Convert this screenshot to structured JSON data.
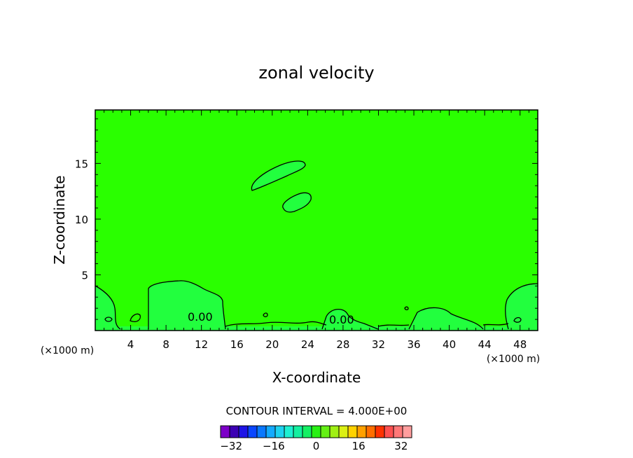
{
  "chart_data": {
    "type": "contour",
    "title": "zonal velocity",
    "xlabel": "X-coordinate",
    "ylabel": "Z-coordinate",
    "x_unit": "(×1000 m)",
    "y_unit": "(×1000 m)",
    "xlim": [
      0,
      50
    ],
    "ylim": [
      0,
      19.8
    ],
    "x_ticks": [
      4,
      8,
      12,
      16,
      20,
      24,
      28,
      32,
      36,
      40,
      44,
      48
    ],
    "y_ticks": [
      5,
      10,
      15
    ],
    "contour_labels": [
      "0.00",
      "0.00"
    ],
    "contour_interval_text": "CONTOUR INTERVAL = 4.000E+00",
    "background_color": "#2aff00",
    "zero_region_color": "#22ff3e",
    "colorbar": {
      "min": -36,
      "max": 36,
      "step": 4,
      "tick_values": [
        -32,
        -16,
        0,
        16,
        32
      ],
      "colors": [
        "#7d00c8",
        "#3c00b4",
        "#1e14e6",
        "#0a46ff",
        "#0a78ff",
        "#14aaff",
        "#1ed2f0",
        "#1ef0d2",
        "#14f0a0",
        "#14f064",
        "#28f014",
        "#64f014",
        "#a0f014",
        "#dcf014",
        "#ffd200",
        "#ffa000",
        "#ff6e00",
        "#ff3200",
        "#ff5050",
        "#ff7878",
        "#ff9e9e"
      ]
    }
  }
}
